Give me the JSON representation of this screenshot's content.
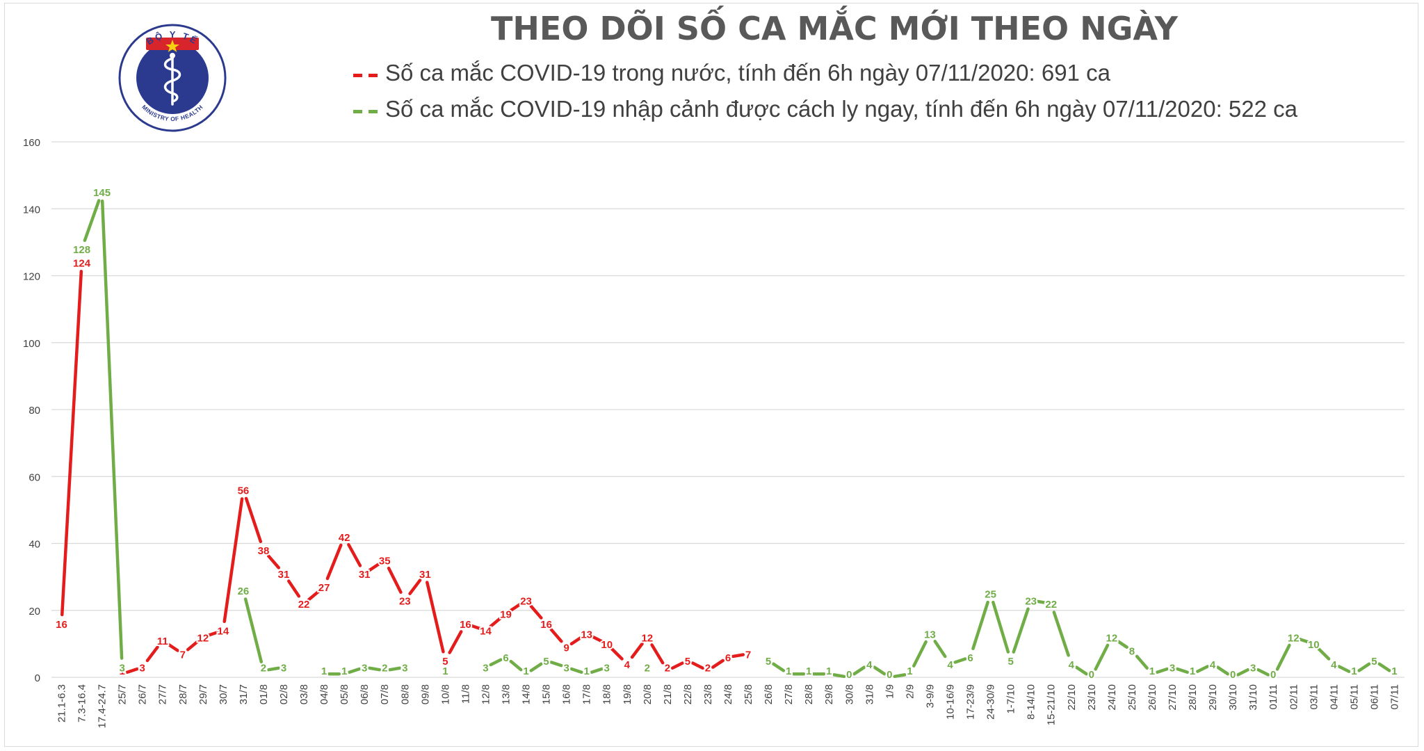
{
  "title": "THEO DÕI SỐ CA MẮC MỚI THEO NGÀY",
  "logo": {
    "top_text": "BỘ Y TẾ",
    "bottom_text": "MINISTRY OF HEALTH"
  },
  "colors": {
    "domestic": "#e41c1c",
    "imported": "#70ad47",
    "title": "#595959",
    "gridline": "#d9d9d9",
    "axis_text": "#404040",
    "logo_blue": "#2b3a8f",
    "logo_red": "#d8252b",
    "logo_star": "#f5d211"
  },
  "chart_data": {
    "type": "line",
    "title": "THEO DÕI SỐ CA MẮC MỚI THEO NGÀY",
    "xlabel": "",
    "ylabel": "",
    "ylim": [
      0,
      160
    ],
    "yticks": [
      0,
      20,
      40,
      60,
      80,
      100,
      120,
      140,
      160
    ],
    "grid": true,
    "legend_position": "top",
    "categories": [
      "21.1-6.3",
      "7.3-16.4",
      "17.4-24.7",
      "25/7",
      "26/7",
      "27/7",
      "28/7",
      "29/7",
      "30/7",
      "31/7",
      "01/8",
      "02/8",
      "03/8",
      "04/8",
      "05/8",
      "06/8",
      "07/8",
      "08/8",
      "09/8",
      "10/8",
      "11/8",
      "12/8",
      "13/8",
      "14/8",
      "15/8",
      "16/8",
      "17/8",
      "18/8",
      "19/8",
      "20/8",
      "21/8",
      "22/8",
      "23/8",
      "24/8",
      "25/8",
      "26/8",
      "27/8",
      "28/8",
      "29/8",
      "30/8",
      "31/8",
      "1/9",
      "2/9",
      "3-9/9",
      "10-16/9",
      "17-23/9",
      "24-30/9",
      "1-7/10",
      "8-14/10",
      "15-21/10",
      "22/10",
      "23/10",
      "24/10",
      "25/10",
      "26/10",
      "27/10",
      "28/10",
      "29/10",
      "30/10",
      "31/10",
      "01/11",
      "02/11",
      "03/11",
      "04/11",
      "05/11",
      "06/11",
      "07/11"
    ],
    "series": [
      {
        "name": "Số ca mắc COVID-19 trong nước, tính đến 6h ngày 07/11/2020: 691 ca",
        "color": "#e41c1c",
        "values": [
          16,
          124,
          null,
          1,
          3,
          11,
          7,
          12,
          14,
          56,
          38,
          31,
          22,
          27,
          42,
          31,
          35,
          23,
          31,
          5,
          16,
          14,
          19,
          23,
          16,
          9,
          13,
          10,
          4,
          12,
          2,
          5,
          2,
          6,
          7,
          null,
          1,
          1,
          1,
          null,
          null,
          null,
          1,
          null,
          null,
          null,
          null,
          null,
          null,
          null,
          null,
          null,
          null,
          null,
          null,
          null,
          null,
          null,
          null,
          null,
          null,
          null,
          null,
          null,
          null,
          null,
          null
        ]
      },
      {
        "name": "Số ca mắc COVID-19 nhập cảnh được cách ly ngay, tính đến 6h ngày 07/11/2020: 522 ca",
        "color": "#70ad47",
        "values": [
          null,
          128,
          145,
          3,
          null,
          null,
          null,
          null,
          null,
          26,
          2,
          3,
          null,
          1,
          1,
          3,
          2,
          3,
          null,
          1,
          null,
          3,
          6,
          1,
          5,
          3,
          1,
          3,
          null,
          2,
          null,
          null,
          null,
          null,
          null,
          5,
          1,
          1,
          1,
          0,
          4,
          0,
          1,
          13,
          4,
          6,
          25,
          5,
          23,
          22,
          4,
          0,
          12,
          8,
          1,
          3,
          1,
          4,
          0,
          3,
          0,
          12,
          10,
          4,
          1,
          5,
          1
        ]
      }
    ]
  }
}
